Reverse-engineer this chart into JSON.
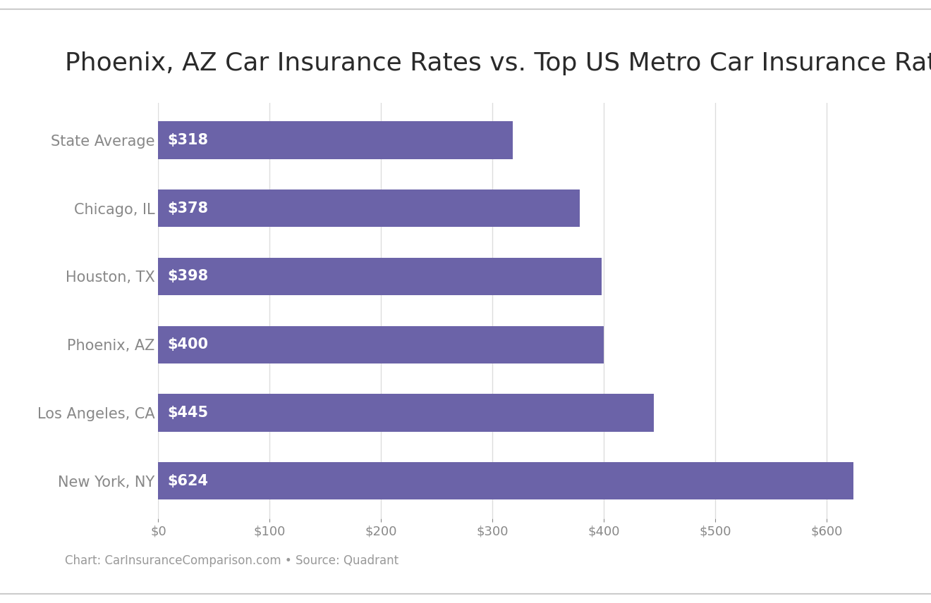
{
  "title": "Phoenix, AZ Car Insurance Rates vs. Top US Metro Car Insurance Rates",
  "categories": [
    "New York, NY",
    "Los Angeles, CA",
    "Phoenix, AZ",
    "Houston, TX",
    "Chicago, IL",
    "State Average"
  ],
  "values": [
    624,
    445,
    400,
    398,
    378,
    318
  ],
  "bar_color": "#6B63A8",
  "label_color": "#FFFFFF",
  "title_color": "#2a2a2a",
  "tick_color": "#888888",
  "background_color": "#FFFFFF",
  "footer_text": "Chart: CarInsuranceComparison.com • Source: Quadrant",
  "footer_color": "#999999",
  "xlim": [
    0,
    660
  ],
  "xtick_values": [
    0,
    100,
    200,
    300,
    400,
    500,
    600
  ],
  "bar_height": 0.55,
  "title_fontsize": 26,
  "label_fontsize": 15,
  "tick_fontsize": 13,
  "ytick_fontsize": 15,
  "footer_fontsize": 12
}
